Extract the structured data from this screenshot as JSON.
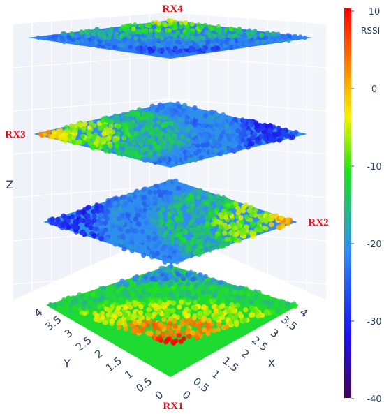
{
  "chart_data": {
    "type": "scatter3d",
    "title": "",
    "xlabel": "X",
    "ylabel": "Y",
    "zlabel": "Z",
    "x_range": [
      0,
      4
    ],
    "y_range": [
      0,
      4
    ],
    "x_ticks": [
      "0",
      "0.5",
      "1",
      "1.5",
      "2",
      "2.5",
      "3",
      "3.5",
      "4"
    ],
    "y_ticks": [
      "0",
      "0.5",
      "1",
      "1.5",
      "2",
      "2.5",
      "3",
      "3.5",
      "4"
    ],
    "grid": true,
    "colorbar": {
      "title": "RSSI",
      "range": [
        -40,
        10
      ],
      "ticks": [
        "10",
        "0",
        "-10",
        "-20",
        "-30",
        "-40"
      ],
      "colorscale": [
        "#440154",
        "#1a12f0",
        "#2f8cf2",
        "#1ce41c",
        "#f5f200",
        "#ff7f00",
        "#ff0000"
      ]
    },
    "layers": [
      {
        "label": "RX1",
        "receiver_position": "bottom corner (x=0, y=0)",
        "rssi_near": 10,
        "rssi_far": -22
      },
      {
        "label": "RX2",
        "receiver_position": "right corner",
        "rssi_near": 0,
        "rssi_far": -30
      },
      {
        "label": "RX3",
        "receiver_position": "left corner",
        "rssi_near": 0,
        "rssi_far": -30
      },
      {
        "label": "RX4",
        "receiver_position": "top corner",
        "rssi_near": -5,
        "rssi_far": -28
      }
    ]
  }
}
